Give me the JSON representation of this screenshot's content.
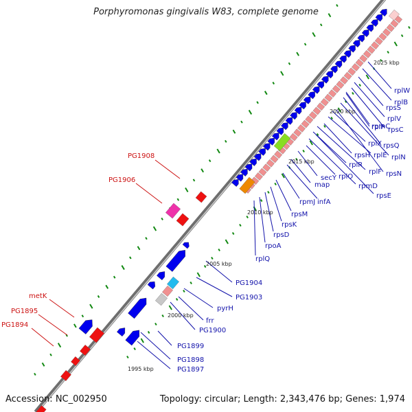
{
  "title": "Porphyromonas gingivalis W83, complete genome",
  "accession": "Accession: NC_002950",
  "summary": "Topology: circular; Length: 2,343,476 bp; Genes: 1,974",
  "colors": {
    "backbone": "#8c8c8c",
    "gene_blue": "#0000ee",
    "gene_red": "#ee1111",
    "gene_salmon": "#f09090",
    "gene_orange": "#ee8800",
    "gene_lime": "#88dd22",
    "gene_magenta": "#ee33aa",
    "gene_cyan": "#22bbee",
    "gene_gray": "#c8c8c8",
    "gc_tick": "#118811",
    "label_blue": "#1111aa",
    "label_red": "#cc1111"
  },
  "scale_labels": [
    "1995 kbp",
    "2000 kbp",
    "2005 kbp",
    "2010 kbp",
    "2015 kbp",
    "2020 kbp",
    "2025 kbp"
  ],
  "right_labels": [
    "PG1897",
    "PG1898",
    "PG1899",
    "PG1900",
    "frr",
    "pyrH",
    "PG1903",
    "PG1904",
    "rplQ",
    "rpoA",
    "rpsD",
    "rpsK",
    "rpsM",
    "rpmJ",
    "infA",
    "map",
    "secY",
    "rplO",
    "rpmD",
    "rpsE",
    "rplR",
    "rplF",
    "rpsH",
    "rplE",
    "rplX",
    "rpsN",
    "rplN",
    "rpsQ",
    "rpmC",
    "rplP",
    "rpsC",
    "rplV",
    "rpsS",
    "rplB",
    "rplW"
  ],
  "left_labels": [
    "PG1894",
    "PG1895",
    "metK",
    "PG1906",
    "PG1908"
  ]
}
